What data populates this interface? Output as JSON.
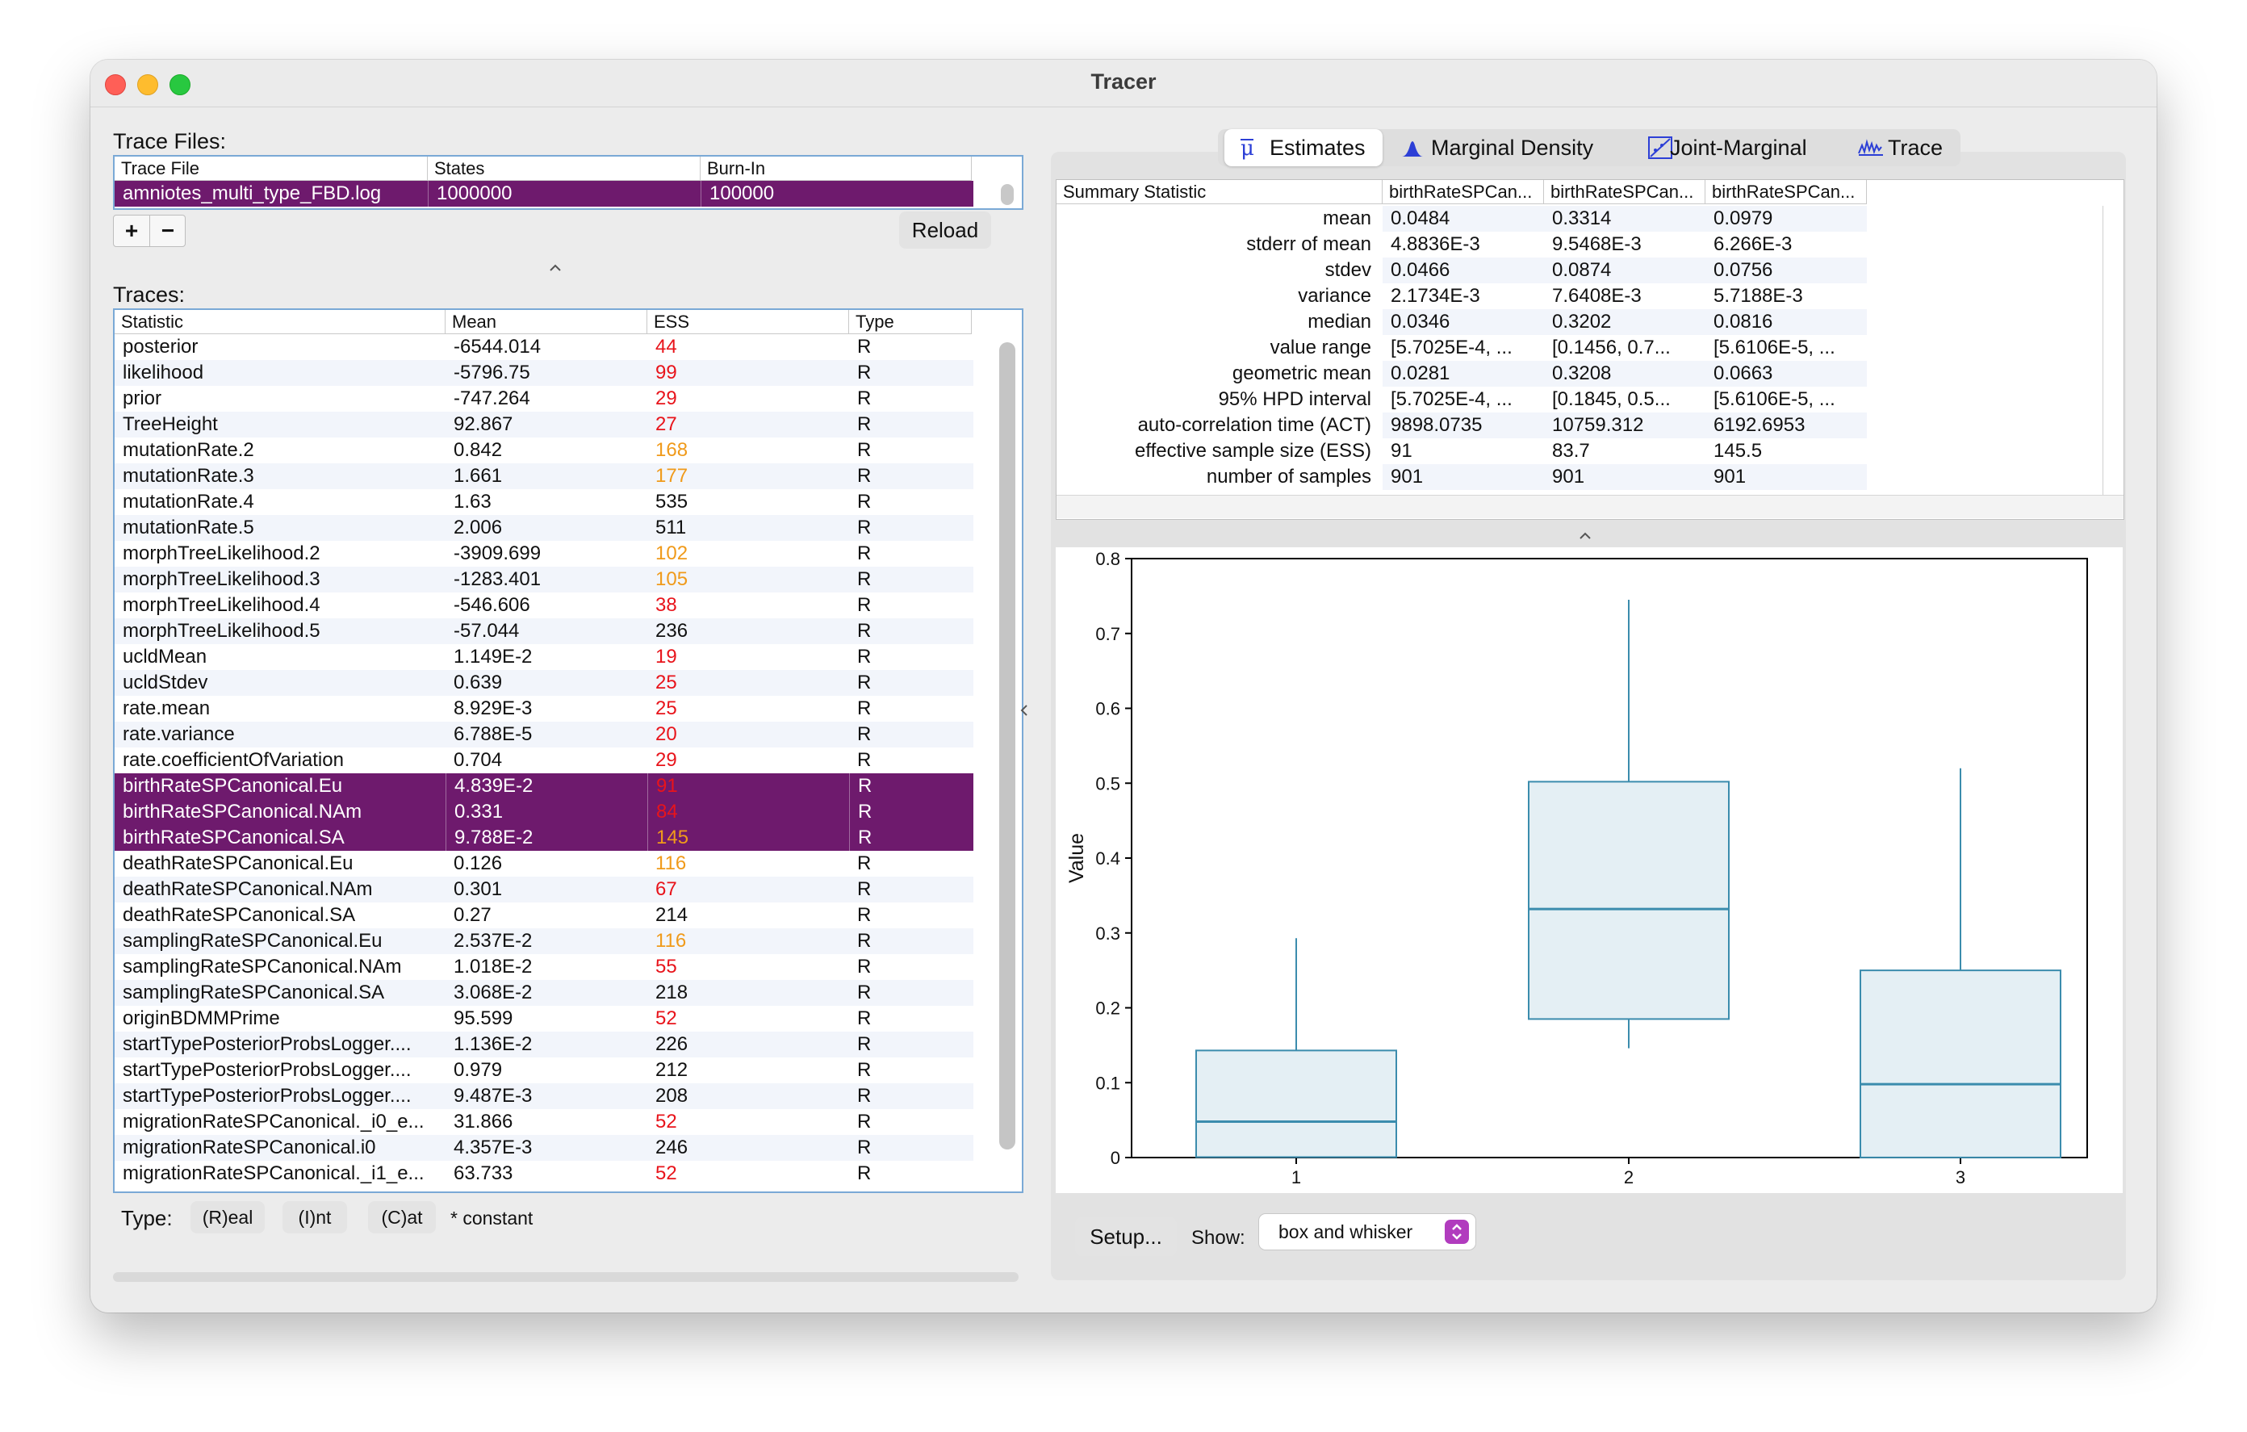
{
  "window": {
    "title": "Tracer"
  },
  "trace_files": {
    "label": "Trace Files:",
    "columns": [
      "Trace File",
      "States",
      "Burn-In"
    ],
    "rows": [
      {
        "file": "amniotes_multi_type_FBD.log",
        "states": "1000000",
        "burnin": "100000"
      }
    ],
    "add_label": "+",
    "remove_label": "−",
    "reload_label": "Reload"
  },
  "traces": {
    "label": "Traces:",
    "columns": [
      "Statistic",
      "Mean",
      "ESS",
      "Type"
    ],
    "rows": [
      {
        "stat": "posterior",
        "mean": "-6544.014",
        "ess": "44",
        "ess_level": "low",
        "type": "R",
        "selected": false
      },
      {
        "stat": "likelihood",
        "mean": "-5796.75",
        "ess": "99",
        "ess_level": "low",
        "type": "R",
        "selected": false
      },
      {
        "stat": "prior",
        "mean": "-747.264",
        "ess": "29",
        "ess_level": "low",
        "type": "R",
        "selected": false
      },
      {
        "stat": "TreeHeight",
        "mean": "92.867",
        "ess": "27",
        "ess_level": "low",
        "type": "R",
        "selected": false
      },
      {
        "stat": "mutationRate.2",
        "mean": "0.842",
        "ess": "168",
        "ess_level": "mid",
        "type": "R",
        "selected": false
      },
      {
        "stat": "mutationRate.3",
        "mean": "1.661",
        "ess": "177",
        "ess_level": "mid",
        "type": "R",
        "selected": false
      },
      {
        "stat": "mutationRate.4",
        "mean": "1.63",
        "ess": "535",
        "ess_level": "ok",
        "type": "R",
        "selected": false
      },
      {
        "stat": "mutationRate.5",
        "mean": "2.006",
        "ess": "511",
        "ess_level": "ok",
        "type": "R",
        "selected": false
      },
      {
        "stat": "morphTreeLikelihood.2",
        "mean": "-3909.699",
        "ess": "102",
        "ess_level": "mid",
        "type": "R",
        "selected": false
      },
      {
        "stat": "morphTreeLikelihood.3",
        "mean": "-1283.401",
        "ess": "105",
        "ess_level": "mid",
        "type": "R",
        "selected": false
      },
      {
        "stat": "morphTreeLikelihood.4",
        "mean": "-546.606",
        "ess": "38",
        "ess_level": "low",
        "type": "R",
        "selected": false
      },
      {
        "stat": "morphTreeLikelihood.5",
        "mean": "-57.044",
        "ess": "236",
        "ess_level": "ok",
        "type": "R",
        "selected": false
      },
      {
        "stat": "ucldMean",
        "mean": "1.149E-2",
        "ess": "19",
        "ess_level": "low",
        "type": "R",
        "selected": false
      },
      {
        "stat": "ucldStdev",
        "mean": "0.639",
        "ess": "25",
        "ess_level": "low",
        "type": "R",
        "selected": false
      },
      {
        "stat": "rate.mean",
        "mean": "8.929E-3",
        "ess": "25",
        "ess_level": "low",
        "type": "R",
        "selected": false
      },
      {
        "stat": "rate.variance",
        "mean": "6.788E-5",
        "ess": "20",
        "ess_level": "low",
        "type": "R",
        "selected": false
      },
      {
        "stat": "rate.coefficientOfVariation",
        "mean": "0.704",
        "ess": "29",
        "ess_level": "low",
        "type": "R",
        "selected": false
      },
      {
        "stat": "birthRateSPCanonical.Eu",
        "mean": "4.839E-2",
        "ess": "91",
        "ess_level": "low",
        "type": "R",
        "selected": true
      },
      {
        "stat": "birthRateSPCanonical.NAm",
        "mean": "0.331",
        "ess": "84",
        "ess_level": "low",
        "type": "R",
        "selected": true
      },
      {
        "stat": "birthRateSPCanonical.SA",
        "mean": "9.788E-2",
        "ess": "145",
        "ess_level": "mid",
        "type": "R",
        "selected": true
      },
      {
        "stat": "deathRateSPCanonical.Eu",
        "mean": "0.126",
        "ess": "116",
        "ess_level": "mid",
        "type": "R",
        "selected": false
      },
      {
        "stat": "deathRateSPCanonical.NAm",
        "mean": "0.301",
        "ess": "67",
        "ess_level": "low",
        "type": "R",
        "selected": false
      },
      {
        "stat": "deathRateSPCanonical.SA",
        "mean": "0.27",
        "ess": "214",
        "ess_level": "ok",
        "type": "R",
        "selected": false
      },
      {
        "stat": "samplingRateSPCanonical.Eu",
        "mean": "2.537E-2",
        "ess": "116",
        "ess_level": "mid",
        "type": "R",
        "selected": false
      },
      {
        "stat": "samplingRateSPCanonical.NAm",
        "mean": "1.018E-2",
        "ess": "55",
        "ess_level": "low",
        "type": "R",
        "selected": false
      },
      {
        "stat": "samplingRateSPCanonical.SA",
        "mean": "3.068E-2",
        "ess": "218",
        "ess_level": "ok",
        "type": "R",
        "selected": false
      },
      {
        "stat": "originBDMMPrime",
        "mean": "95.599",
        "ess": "52",
        "ess_level": "low",
        "type": "R",
        "selected": false
      },
      {
        "stat": "startTypePosteriorProbsLogger....",
        "mean": "1.136E-2",
        "ess": "226",
        "ess_level": "ok",
        "type": "R",
        "selected": false
      },
      {
        "stat": "startTypePosteriorProbsLogger....",
        "mean": "0.979",
        "ess": "212",
        "ess_level": "ok",
        "type": "R",
        "selected": false
      },
      {
        "stat": "startTypePosteriorProbsLogger....",
        "mean": "9.487E-3",
        "ess": "208",
        "ess_level": "ok",
        "type": "R",
        "selected": false
      },
      {
        "stat": "migrationRateSPCanonical._i0_e...",
        "mean": "31.866",
        "ess": "52",
        "ess_level": "low",
        "type": "R",
        "selected": false
      },
      {
        "stat": "migrationRateSPCanonical.i0",
        "mean": "4.357E-3",
        "ess": "246",
        "ess_level": "ok",
        "type": "R",
        "selected": false
      },
      {
        "stat": "migrationRateSPCanonical._i1_e...",
        "mean": "63.733",
        "ess": "52",
        "ess_level": "low",
        "type": "R",
        "selected": false
      }
    ]
  },
  "type_filter": {
    "label": "Type:",
    "real": "(R)eal",
    "int": "(I)nt",
    "cat": "(C)at",
    "note": "* constant"
  },
  "tabs": [
    {
      "label": "Estimates",
      "icon": "mu-icon",
      "active": true
    },
    {
      "label": "Marginal Density",
      "icon": "density-icon",
      "active": false
    },
    {
      "label": "Joint-Marginal",
      "icon": "joint-marginal-icon",
      "active": false
    },
    {
      "label": "Trace",
      "icon": "trace-icon",
      "active": false
    }
  ],
  "summary": {
    "header": "Summary Statistic",
    "columns": [
      "birthRateSPCan...",
      "birthRateSPCan...",
      "birthRateSPCan..."
    ],
    "rows": [
      {
        "stat": "mean",
        "values": [
          "0.0484",
          "0.3314",
          "0.0979"
        ]
      },
      {
        "stat": "stderr of mean",
        "values": [
          "4.8836E-3",
          "9.5468E-3",
          "6.266E-3"
        ]
      },
      {
        "stat": "stdev",
        "values": [
          "0.0466",
          "0.0874",
          "0.0756"
        ]
      },
      {
        "stat": "variance",
        "values": [
          "2.1734E-3",
          "7.6408E-3",
          "5.7188E-3"
        ]
      },
      {
        "stat": "median",
        "values": [
          "0.0346",
          "0.3202",
          "0.0816"
        ]
      },
      {
        "stat": "value range",
        "values": [
          "[5.7025E-4, ...",
          "[0.1456, 0.7...",
          "[5.6106E-5, ..."
        ]
      },
      {
        "stat": "geometric mean",
        "values": [
          "0.0281",
          "0.3208",
          "0.0663"
        ]
      },
      {
        "stat": "95% HPD interval",
        "values": [
          "[5.7025E-4, ...",
          "[0.1845, 0.5...",
          "[5.6106E-5, ..."
        ]
      },
      {
        "stat": "auto-correlation time (ACT)",
        "values": [
          "9898.0735",
          "10759.312",
          "6192.6953"
        ]
      },
      {
        "stat": "effective sample size (ESS)",
        "values": [
          "91",
          "83.7",
          "145.5"
        ]
      },
      {
        "stat": "number of samples",
        "values": [
          "901",
          "901",
          "901"
        ]
      }
    ]
  },
  "chart_data": {
    "type": "box",
    "ylabel": "Value",
    "ylim": [
      0,
      0.8
    ],
    "yticks": [
      "0",
      "0.1",
      "0.2",
      "0.3",
      "0.4",
      "0.5",
      "0.6",
      "0.7",
      "0.8"
    ],
    "categories": [
      "1",
      "2",
      "3"
    ],
    "boxes": [
      {
        "label": "1",
        "whisker_low": 0.0006,
        "q1": 0.0006,
        "median": 0.048,
        "q3": 0.143,
        "whisker_high": 0.293
      },
      {
        "label": "2",
        "whisker_low": 0.146,
        "q1": 0.185,
        "median": 0.332,
        "q3": 0.502,
        "whisker_high": 0.745
      },
      {
        "label": "3",
        "whisker_low": 0.0001,
        "q1": 0.0001,
        "median": 0.098,
        "q3": 0.25,
        "whisker_high": 0.52
      }
    ],
    "box_fill": "#e4eff4",
    "box_stroke": "#3b8cad",
    "grid": false
  },
  "controls": {
    "setup_label": "Setup...",
    "show_label": "Show:",
    "show_value": "box and whisker"
  },
  "colors": {
    "selection": "#6e1a6d",
    "ess_low": "#e8141b",
    "ess_mid": "#f09a1a",
    "accent": "#b13cbe"
  }
}
